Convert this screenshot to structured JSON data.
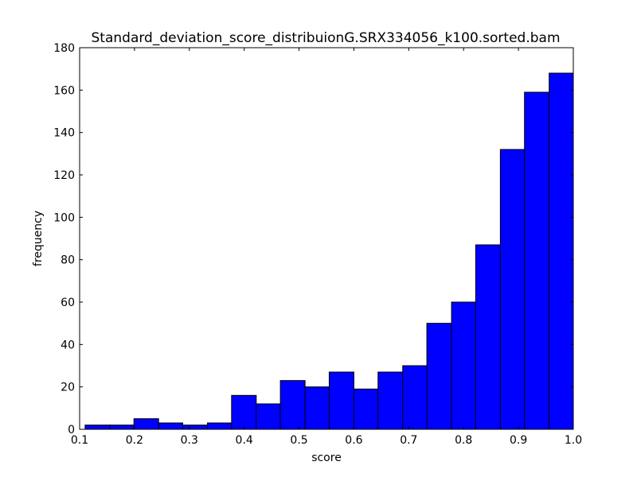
{
  "chart_data": {
    "type": "bar",
    "title": "Standard_deviation_score_distribuionG.SRX334056_k100.sorted.bam",
    "xlabel": "score",
    "ylabel": "frequency",
    "xlim": [
      0.1,
      1.0
    ],
    "ylim": [
      0,
      180
    ],
    "x_ticks": [
      "0.1",
      "0.2",
      "0.3",
      "0.4",
      "0.5",
      "0.6",
      "0.7",
      "0.8",
      "0.9",
      "1.0"
    ],
    "y_ticks": [
      "0",
      "20",
      "40",
      "60",
      "80",
      "100",
      "120",
      "140",
      "160",
      "180"
    ],
    "grid": false,
    "bar_color": "#0000ff",
    "bins": [
      {
        "start": 0.11,
        "end": 0.155,
        "count": 2
      },
      {
        "start": 0.155,
        "end": 0.199,
        "count": 2
      },
      {
        "start": 0.199,
        "end": 0.244,
        "count": 5
      },
      {
        "start": 0.244,
        "end": 0.288,
        "count": 3
      },
      {
        "start": 0.288,
        "end": 0.333,
        "count": 2
      },
      {
        "start": 0.333,
        "end": 0.377,
        "count": 3
      },
      {
        "start": 0.377,
        "end": 0.422,
        "count": 16
      },
      {
        "start": 0.422,
        "end": 0.466,
        "count": 12
      },
      {
        "start": 0.466,
        "end": 0.511,
        "count": 23
      },
      {
        "start": 0.511,
        "end": 0.555,
        "count": 20
      },
      {
        "start": 0.555,
        "end": 0.6,
        "count": 27
      },
      {
        "start": 0.6,
        "end": 0.644,
        "count": 19
      },
      {
        "start": 0.644,
        "end": 0.689,
        "count": 27
      },
      {
        "start": 0.689,
        "end": 0.733,
        "count": 30
      },
      {
        "start": 0.733,
        "end": 0.778,
        "count": 50
      },
      {
        "start": 0.778,
        "end": 0.822,
        "count": 60
      },
      {
        "start": 0.822,
        "end": 0.867,
        "count": 87
      },
      {
        "start": 0.867,
        "end": 0.911,
        "count": 132
      },
      {
        "start": 0.911,
        "end": 0.956,
        "count": 159
      },
      {
        "start": 0.956,
        "end": 1.0,
        "count": 168
      }
    ]
  }
}
